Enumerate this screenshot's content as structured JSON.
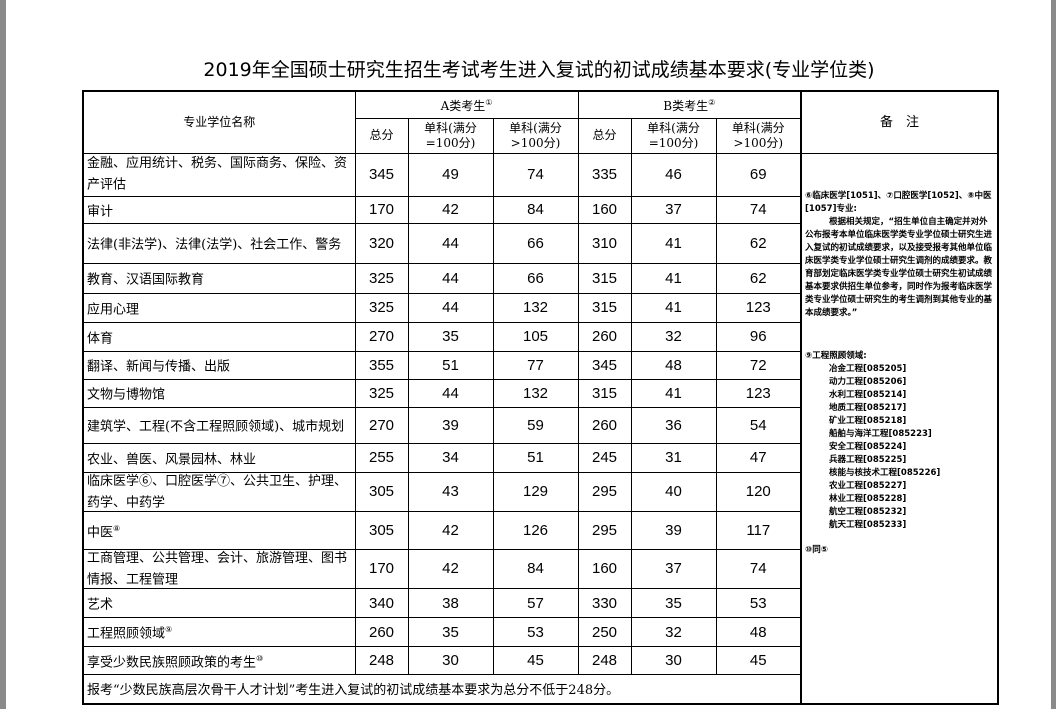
{
  "title": "2019年全国硕士研究生招生考试考生进入复试的初试成绩基本要求(专业学位类)",
  "header": {
    "name": "专业学位名称",
    "groupA": "A类考生",
    "groupA_sup": "①",
    "groupB": "B类考生",
    "groupB_sup": "②",
    "notes": "备　注",
    "total": "总分",
    "single100": "单科(满分=100分)",
    "single_gt100": "单科(满分>100分)"
  },
  "rows": [
    {
      "name": "金融、应用统计、税务、国际商务、保险、资产评估",
      "sup": "",
      "a": [
        "345",
        "49",
        "74"
      ],
      "b": [
        "335",
        "46",
        "69"
      ]
    },
    {
      "name": "审计",
      "sup": "",
      "a": [
        "170",
        "42",
        "84"
      ],
      "b": [
        "160",
        "37",
        "74"
      ]
    },
    {
      "name": "法律(非法学)、法律(法学)、社会工作、警务",
      "sup": "",
      "a": [
        "320",
        "44",
        "66"
      ],
      "b": [
        "310",
        "41",
        "62"
      ]
    },
    {
      "name": "教育、汉语国际教育",
      "sup": "",
      "a": [
        "325",
        "44",
        "66"
      ],
      "b": [
        "315",
        "41",
        "62"
      ]
    },
    {
      "name": "应用心理",
      "sup": "",
      "a": [
        "325",
        "44",
        "132"
      ],
      "b": [
        "315",
        "41",
        "123"
      ]
    },
    {
      "name": "体育",
      "sup": "",
      "a": [
        "270",
        "35",
        "105"
      ],
      "b": [
        "260",
        "32",
        "96"
      ]
    },
    {
      "name": "翻译、新闻与传播、出版",
      "sup": "",
      "a": [
        "355",
        "51",
        "77"
      ],
      "b": [
        "345",
        "48",
        "72"
      ]
    },
    {
      "name": "文物与博物馆",
      "sup": "",
      "a": [
        "325",
        "44",
        "132"
      ],
      "b": [
        "315",
        "41",
        "123"
      ]
    },
    {
      "name": "建筑学、工程(不含工程照顾领域)、城市规划",
      "sup": "",
      "a": [
        "270",
        "39",
        "59"
      ],
      "b": [
        "260",
        "36",
        "54"
      ]
    },
    {
      "name": "农业、兽医、风景园林、林业",
      "sup": "",
      "a": [
        "255",
        "34",
        "51"
      ],
      "b": [
        "245",
        "31",
        "47"
      ]
    },
    {
      "name": "临床医学⑥、口腔医学⑦、公共卫生、护理、药学、中药学",
      "sup": "",
      "a": [
        "305",
        "43",
        "129"
      ],
      "b": [
        "295",
        "40",
        "120"
      ]
    },
    {
      "name": "中医",
      "sup": "⑧",
      "a": [
        "305",
        "42",
        "126"
      ],
      "b": [
        "295",
        "39",
        "117"
      ]
    },
    {
      "name": "工商管理、公共管理、会计、旅游管理、图书情报、工程管理",
      "sup": "",
      "a": [
        "170",
        "42",
        "84"
      ],
      "b": [
        "160",
        "37",
        "74"
      ]
    },
    {
      "name": "艺术",
      "sup": "",
      "a": [
        "340",
        "38",
        "57"
      ],
      "b": [
        "330",
        "35",
        "53"
      ]
    },
    {
      "name": "工程照顾领域",
      "sup": "⑨",
      "a": [
        "260",
        "35",
        "53"
      ],
      "b": [
        "250",
        "32",
        "48"
      ]
    },
    {
      "name": "享受少数民族照顾政策的考生",
      "sup": "⑩",
      "a": [
        "248",
        "30",
        "45"
      ],
      "b": [
        "248",
        "30",
        "45"
      ]
    }
  ],
  "footer": "报考“少数民族高层次骨干人才计划”考生进入复试的初试成绩基本要求为总分不低于248分。",
  "notes": {
    "medical_head": "⑥临床医学[1051]、⑦口腔医学[1052]、⑧中医[1057]专业:",
    "medical_body": "根据相关规定，“招生单位自主确定并对外公布报考本单位临床医学类专业学位硕士研究生进入复试的初试成绩要求，以及接受报考其他单位临床医学类专业学位硕士研究生调剂的成绩要求。教育部划定临床医学类专业学位硕士研究生初试成绩基本要求供招生单位参考，同时作为报考临床医学类专业学位硕士研究生的考生调剂到其他专业的基本成绩要求。”",
    "eng_head": "⑨工程照顾领域:",
    "eng_items": [
      "冶金工程[085205]",
      "动力工程[085206]",
      "水利工程[085214]",
      "地质工程[085217]",
      "矿业工程[085218]",
      "船舶与海洋工程[085223]",
      "安全工程[085224]",
      "兵器工程[085225]",
      "核能与核技术工程[085226]",
      "农业工程[085227]",
      "林业工程[085228]",
      "航空工程[085232]",
      "航天工程[085233]"
    ],
    "minority": "⑩同⑤"
  }
}
